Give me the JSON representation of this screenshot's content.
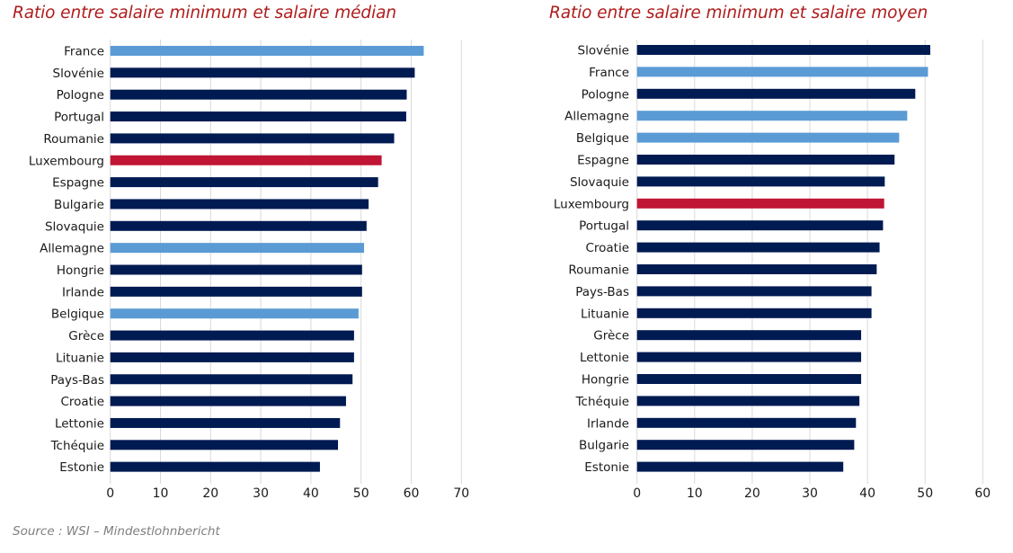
{
  "colors": {
    "default": "#001a52",
    "highlight": "#5b9bd5",
    "luxembourg": "#c01534",
    "title": "#b01c1c",
    "grid": "#d9d9d9",
    "source": "#7f7f7f"
  },
  "source_text": "Source : WSI – Mindestlohnbericht",
  "chart_data": [
    {
      "type": "bar",
      "orientation": "horizontal",
      "title": "Ratio entre salaire minimum et salaire médian",
      "xlabel": "",
      "ylabel": "",
      "xlim": [
        0,
        70
      ],
      "xticks": [
        0,
        10,
        20,
        30,
        40,
        50,
        60,
        70
      ],
      "grid": true,
      "legend": "none",
      "categories": [
        "France",
        "Slovénie",
        "Pologne",
        "Portugal",
        "Roumanie",
        "Luxembourg",
        "Espagne",
        "Bulgarie",
        "Slovaquie",
        "Allemagne",
        "Hongrie",
        "Irlande",
        "Belgique",
        "Grèce",
        "Lituanie",
        "Pays-Bas",
        "Croatie",
        "Lettonie",
        "Tchéquie",
        "Estonie"
      ],
      "values": [
        62.5,
        60.7,
        59.1,
        59.0,
        56.6,
        54.1,
        53.4,
        51.5,
        51.1,
        50.6,
        50.2,
        50.2,
        49.5,
        48.6,
        48.6,
        48.3,
        47.0,
        45.8,
        45.4,
        41.8
      ],
      "bar_color_keys": [
        "highlight",
        "default",
        "default",
        "default",
        "default",
        "luxembourg",
        "default",
        "default",
        "default",
        "highlight",
        "default",
        "default",
        "highlight",
        "default",
        "default",
        "default",
        "default",
        "default",
        "default",
        "default"
      ]
    },
    {
      "type": "bar",
      "orientation": "horizontal",
      "title": "Ratio entre salaire minimum et salaire moyen",
      "xlabel": "",
      "ylabel": "",
      "xlim": [
        0,
        60
      ],
      "xticks": [
        0,
        10,
        20,
        30,
        40,
        50,
        60
      ],
      "grid": true,
      "legend": "none",
      "categories": [
        "Slovénie",
        "France",
        "Pologne",
        "Allemagne",
        "Belgique",
        "Espagne",
        "Slovaquie",
        "Luxembourg",
        "Portugal",
        "Croatie",
        "Roumanie",
        "Pays-Bas",
        "Lituanie",
        "Grèce",
        "Lettonie",
        "Hongrie",
        "Tchéquie",
        "Irlande",
        "Bulgarie",
        "Estonie"
      ],
      "values": [
        50.9,
        50.5,
        48.3,
        46.9,
        45.5,
        44.7,
        43.0,
        42.9,
        42.7,
        42.1,
        41.6,
        40.7,
        40.7,
        38.9,
        38.9,
        38.9,
        38.6,
        38.0,
        37.7,
        35.8
      ],
      "bar_color_keys": [
        "default",
        "highlight",
        "default",
        "highlight",
        "highlight",
        "default",
        "default",
        "luxembourg",
        "default",
        "default",
        "default",
        "default",
        "default",
        "default",
        "default",
        "default",
        "default",
        "default",
        "default",
        "default"
      ]
    }
  ]
}
